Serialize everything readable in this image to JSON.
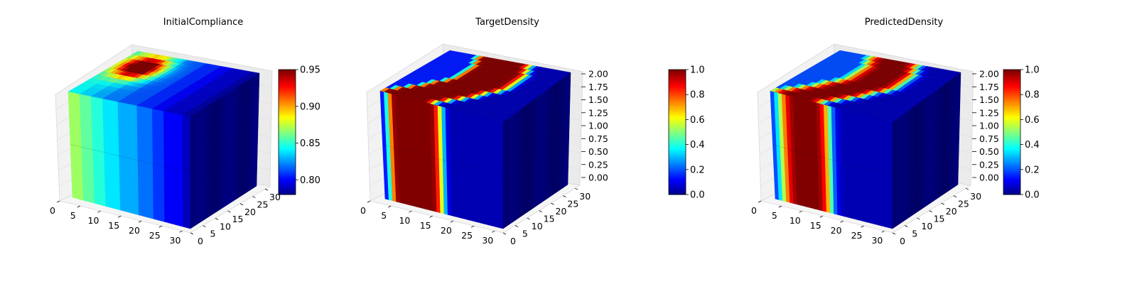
{
  "chart_data": [
    {
      "type": "voxel3d",
      "title": "InitialCompliance",
      "x_ticks": [
        "0",
        "5",
        "10",
        "15",
        "20",
        "25",
        "30"
      ],
      "y_ticks": [
        "0",
        "5",
        "10",
        "15",
        "20",
        "25",
        "30"
      ],
      "z_ticks": [
        "",
        "",
        "",
        "",
        "",
        "",
        ""
      ],
      "x_range": [
        0,
        32
      ],
      "y_range": [
        0,
        32
      ],
      "z_range": [
        0,
        2
      ],
      "grid": true,
      "colormap": "jet",
      "colorbar": {
        "ticks": [
          "0.80",
          "0.85",
          "0.90",
          "0.95"
        ],
        "range": [
          0.78,
          0.95
        ]
      },
      "front_face_values": [
        0.87,
        0.87,
        0.87,
        0.86,
        0.86,
        0.86,
        0.85,
        0.85,
        0.85,
        0.84,
        0.84,
        0.84,
        0.84,
        0.83,
        0.83,
        0.83,
        0.83,
        0.83,
        0.82,
        0.82,
        0.82,
        0.82,
        0.81,
        0.81,
        0.81,
        0.8,
        0.8,
        0.8,
        0.8,
        0.8,
        0.79,
        0.79
      ],
      "top_hotspot_value": 0.95
    },
    {
      "type": "voxel3d",
      "title": "TargetDensity",
      "x_ticks": [
        "0",
        "5",
        "10",
        "15",
        "20",
        "25",
        "30"
      ],
      "y_ticks": [
        "0",
        "5",
        "10",
        "15",
        "20",
        "25",
        "30"
      ],
      "z_ticks": [
        "0.00",
        "0.25",
        "0.50",
        "0.75",
        "1.00",
        "1.25",
        "1.50",
        "1.75",
        "2.00"
      ],
      "x_range": [
        0,
        32
      ],
      "y_range": [
        0,
        32
      ],
      "z_range": [
        0,
        2
      ],
      "grid": true,
      "colormap": "jet",
      "colorbar": {
        "ticks": [
          "0.0",
          "0.2",
          "0.4",
          "0.6",
          "0.8",
          "1.0"
        ],
        "range": [
          0,
          1
        ]
      },
      "front_face_values": [
        0.15,
        0.4,
        0.75,
        0.98,
        1,
        1,
        1,
        1,
        1,
        1,
        1,
        1,
        1,
        0.98,
        0.85,
        0.6,
        0.3,
        0.1,
        0.05,
        0.05,
        0.05,
        0.05,
        0.05,
        0.05,
        0.05,
        0.05,
        0.05,
        0.05,
        0.05,
        0.05,
        0.05,
        0.05
      ]
    },
    {
      "type": "voxel3d",
      "title": "PredictedDensity",
      "x_ticks": [
        "0",
        "5",
        "10",
        "15",
        "20",
        "25",
        "30"
      ],
      "y_ticks": [
        "0",
        "5",
        "10",
        "15",
        "20",
        "25",
        "30"
      ],
      "z_ticks": [
        "0.00",
        "0.25",
        "0.50",
        "0.75",
        "1.00",
        "1.25",
        "1.50",
        "1.75",
        "2.00"
      ],
      "x_range": [
        0,
        32
      ],
      "y_range": [
        0,
        32
      ],
      "z_range": [
        0,
        2
      ],
      "grid": true,
      "colormap": "jet",
      "colorbar": {
        "ticks": [
          "0.0",
          "0.2",
          "0.4",
          "0.6",
          "0.8",
          "1.0"
        ],
        "range": [
          0,
          1
        ]
      },
      "front_face_values": [
        0.2,
        0.35,
        0.55,
        0.75,
        0.9,
        0.97,
        1,
        1,
        1,
        1,
        1,
        1,
        0.97,
        0.88,
        0.7,
        0.45,
        0.22,
        0.1,
        0.06,
        0.05,
        0.05,
        0.05,
        0.05,
        0.05,
        0.05,
        0.05,
        0.05,
        0.05,
        0.05,
        0.05,
        0.05,
        0.05
      ]
    }
  ]
}
